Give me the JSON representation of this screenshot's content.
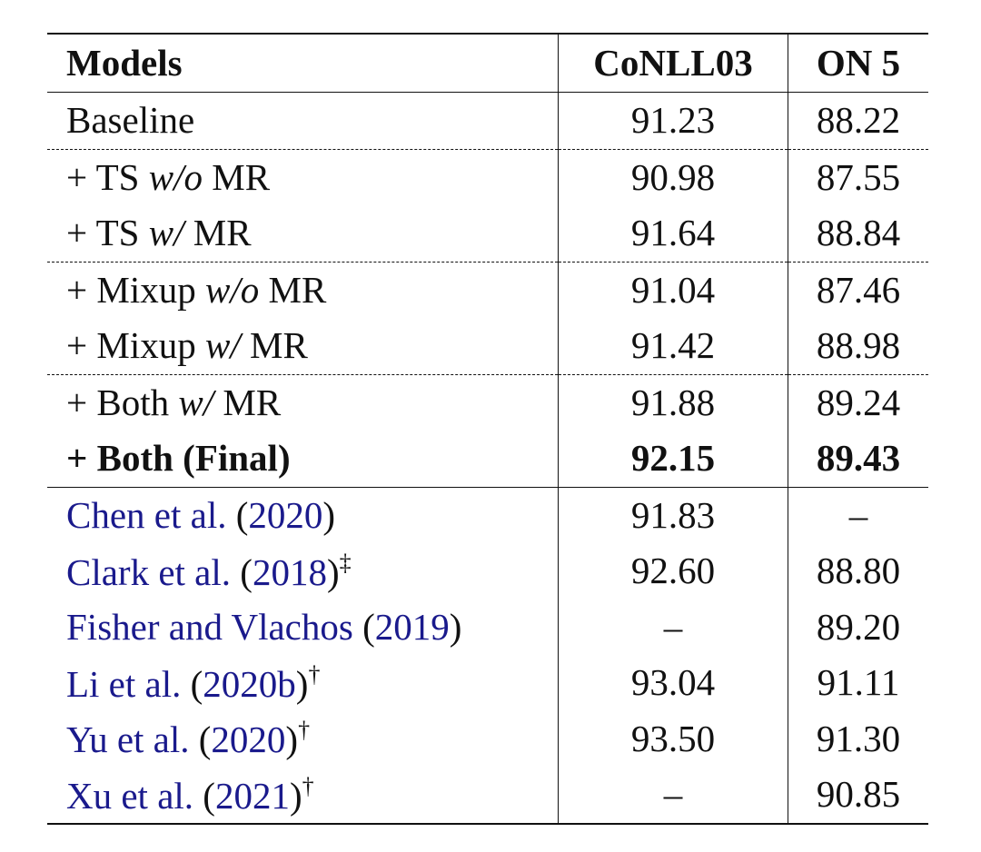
{
  "table": {
    "header": [
      "Models",
      "CoNLL03",
      "ON 5"
    ],
    "rows": [
      {
        "model": [
          {
            "text": "Baseline"
          }
        ],
        "values": [
          "91.23",
          "88.22"
        ]
      },
      {
        "rule_above": "dashed",
        "model": [
          {
            "text": "+ TS "
          },
          {
            "text": "w/o",
            "style": "italic"
          },
          {
            "text": " MR"
          }
        ],
        "values": [
          "90.98",
          "87.55"
        ]
      },
      {
        "model": [
          {
            "text": "+ TS "
          },
          {
            "text": "w/",
            "style": "italic"
          },
          {
            "text": " MR"
          }
        ],
        "values": [
          "91.64",
          "88.84"
        ]
      },
      {
        "rule_above": "dashed",
        "model": [
          {
            "text": "+ Mixup "
          },
          {
            "text": "w/o",
            "style": "italic"
          },
          {
            "text": " MR"
          }
        ],
        "values": [
          "91.04",
          "87.46"
        ]
      },
      {
        "model": [
          {
            "text": "+ Mixup "
          },
          {
            "text": "w/",
            "style": "italic"
          },
          {
            "text": " MR"
          }
        ],
        "values": [
          "91.42",
          "88.98"
        ]
      },
      {
        "rule_above": "dashed",
        "model": [
          {
            "text": "+ Both "
          },
          {
            "text": "w/",
            "style": "italic"
          },
          {
            "text": " MR"
          }
        ],
        "values": [
          "91.88",
          "89.24"
        ]
      },
      {
        "bold": true,
        "model": [
          {
            "text": "+ Both (Final)"
          }
        ],
        "values": [
          "92.15",
          "89.43"
        ]
      },
      {
        "rule_above": "solid",
        "model": [
          {
            "text": "Chen et al.",
            "style": "link"
          },
          {
            "text": " ("
          },
          {
            "text": "2020",
            "style": "link"
          },
          {
            "text": ")"
          }
        ],
        "values": [
          "91.83",
          "–"
        ]
      },
      {
        "model": [
          {
            "text": "Clark et al.",
            "style": "link"
          },
          {
            "text": " ("
          },
          {
            "text": "2018",
            "style": "link"
          },
          {
            "text": ")"
          },
          {
            "text": "‡",
            "style": "sup"
          }
        ],
        "values": [
          "92.60",
          "88.80"
        ]
      },
      {
        "model": [
          {
            "text": "Fisher and Vlachos",
            "style": "link"
          },
          {
            "text": " ("
          },
          {
            "text": "2019",
            "style": "link"
          },
          {
            "text": ")"
          }
        ],
        "values": [
          "–",
          "89.20"
        ]
      },
      {
        "model": [
          {
            "text": "Li et al.",
            "style": "link"
          },
          {
            "text": " ("
          },
          {
            "text": "2020b",
            "style": "link"
          },
          {
            "text": ")"
          },
          {
            "text": "†",
            "style": "sup"
          }
        ],
        "values": [
          "93.04",
          "91.11"
        ]
      },
      {
        "model": [
          {
            "text": "Yu et al.",
            "style": "link"
          },
          {
            "text": " ("
          },
          {
            "text": "2020",
            "style": "link"
          },
          {
            "text": ")"
          },
          {
            "text": "†",
            "style": "sup"
          }
        ],
        "values": [
          "93.50",
          "91.30"
        ]
      },
      {
        "model": [
          {
            "text": "Xu et al.",
            "style": "link"
          },
          {
            "text": " ("
          },
          {
            "text": "2021",
            "style": "link"
          },
          {
            "text": ")"
          },
          {
            "text": "†",
            "style": "sup"
          }
        ],
        "values": [
          "–",
          "90.85"
        ]
      }
    ]
  }
}
